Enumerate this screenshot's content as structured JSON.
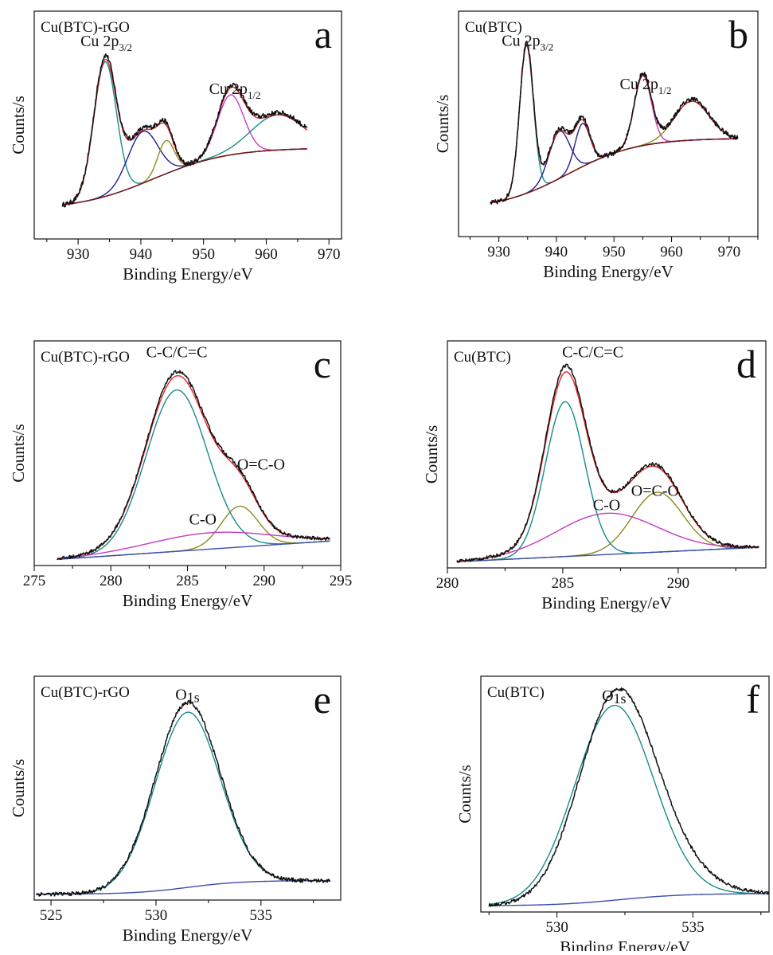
{
  "colors": {
    "raw": "#111111",
    "envelope": "#e8262b",
    "main_peak": "#188a8a",
    "satellite_1": "#1f1f8c",
    "satellite_2": "#8b8b1e",
    "broad_peak": "#c23cc2",
    "background": "#7a1414",
    "baseline": "#3b4fb0"
  },
  "chart_data": [
    {
      "type": "line",
      "panel_letter": "a",
      "sample": "Cu(BTC)-rGO",
      "xlabel": "Binding Energy/eV",
      "ylabel": "Counts/s",
      "xlim": [
        923,
        972
      ],
      "ylim": [
        0,
        1.1
      ],
      "xticks": [
        930,
        940,
        950,
        960,
        970
      ],
      "peak_labels": [
        {
          "main": "Cu 2p",
          "sub": "3/2",
          "x": 934.5,
          "y": 0.93
        },
        {
          "main": "Cu 2p",
          "sub": "1/2",
          "x": 955,
          "y": 0.7
        }
      ],
      "x_range": [
        927.5,
        966.5
      ],
      "noise": 0.012,
      "noise_on": [
        "raw"
      ],
      "series": [
        {
          "role": "raw",
          "baseline": {
            "type": "shirley",
            "y0": 0.14,
            "y1": 0.44,
            "c": 942,
            "w": 6
          },
          "peaks": [
            [
              934.3,
              0.67,
              1.8
            ],
            [
              940.3,
              0.26,
              2.4
            ],
            [
              944.0,
              0.17,
              1.3
            ],
            [
              954.3,
              0.3,
              2.1
            ],
            [
              961.8,
              0.18,
              4.2
            ]
          ],
          "role_color": "raw"
        },
        {
          "role": "envelope",
          "baseline": {
            "type": "shirley",
            "y0": 0.14,
            "y1": 0.44,
            "c": 942,
            "w": 6
          },
          "peaks": [
            [
              934.3,
              0.65,
              1.8
            ],
            [
              940.3,
              0.25,
              2.4
            ],
            [
              944.0,
              0.16,
              1.3
            ],
            [
              954.3,
              0.29,
              2.1
            ],
            [
              961.8,
              0.17,
              4.2
            ]
          ],
          "role_color": "envelope"
        },
        {
          "role": "component",
          "baseline": {
            "type": "shirley",
            "y0": 0.14,
            "y1": 0.44,
            "c": 942,
            "w": 6
          },
          "peaks": [
            [
              934.3,
              0.65,
              1.8
            ]
          ],
          "role_color": "main_peak"
        },
        {
          "role": "component",
          "baseline": {
            "type": "shirley",
            "y0": 0.14,
            "y1": 0.44,
            "c": 942,
            "w": 6
          },
          "peaks": [
            [
              940.3,
              0.25,
              2.4
            ]
          ],
          "role_color": "satellite_1"
        },
        {
          "role": "component",
          "baseline": {
            "type": "shirley",
            "y0": 0.14,
            "y1": 0.44,
            "c": 942,
            "w": 6
          },
          "peaks": [
            [
              944.0,
              0.16,
              1.3
            ]
          ],
          "role_color": "satellite_2"
        },
        {
          "role": "component",
          "baseline": {
            "type": "shirley",
            "y0": 0.14,
            "y1": 0.44,
            "c": 942,
            "w": 6
          },
          "peaks": [
            [
              954.3,
              0.29,
              2.1
            ]
          ],
          "role_color": "broad_peak"
        },
        {
          "role": "component",
          "baseline": {
            "type": "shirley",
            "y0": 0.14,
            "y1": 0.44,
            "c": 942,
            "w": 6
          },
          "peaks": [
            [
              961.8,
              0.17,
              4.2
            ]
          ],
          "role_color": "main_peak"
        },
        {
          "role": "background",
          "baseline": {
            "type": "shirley",
            "y0": 0.14,
            "y1": 0.44,
            "c": 942,
            "w": 6
          },
          "peaks": [],
          "role_color": "background"
        }
      ]
    },
    {
      "type": "line",
      "panel_letter": "b",
      "sample": "Cu(BTC)",
      "xlabel": "Binding Energy/eV",
      "ylabel": "Counts/s",
      "xlim": [
        923,
        975
      ],
      "ylim": [
        0,
        1.1
      ],
      "xticks": [
        930,
        940,
        950,
        960,
        970
      ],
      "peak_labels": [
        {
          "main": "Cu 2p",
          "sub": "3/2",
          "x": 935,
          "y": 0.93
        },
        {
          "main": "Cu 2p",
          "sub": "1/2",
          "x": 955.5,
          "y": 0.72
        }
      ],
      "x_range": [
        928.5,
        971.5
      ],
      "noise": 0.012,
      "noise_on": [
        "raw"
      ],
      "series": [
        {
          "role": "raw",
          "baseline": {
            "type": "shirley",
            "y0": 0.13,
            "y1": 0.48,
            "c": 942,
            "w": 6
          },
          "peaks": [
            [
              934.8,
              0.73,
              1.2
            ],
            [
              940.5,
              0.24,
              1.8
            ],
            [
              944.5,
              0.22,
              1.3
            ],
            [
              955.0,
              0.35,
              1.5
            ],
            [
              963.5,
              0.2,
              3.0
            ]
          ],
          "role_color": "raw"
        },
        {
          "role": "envelope",
          "baseline": {
            "type": "shirley",
            "y0": 0.13,
            "y1": 0.48,
            "c": 942,
            "w": 6
          },
          "peaks": [
            [
              934.8,
              0.72,
              1.2
            ],
            [
              940.5,
              0.23,
              1.8
            ],
            [
              944.5,
              0.21,
              1.3
            ],
            [
              955.0,
              0.34,
              1.5
            ],
            [
              963.5,
              0.19,
              3.0
            ]
          ],
          "role_color": "envelope"
        },
        {
          "role": "component",
          "baseline": {
            "type": "shirley",
            "y0": 0.13,
            "y1": 0.48,
            "c": 942,
            "w": 6
          },
          "peaks": [
            [
              934.8,
              0.72,
              1.2
            ]
          ],
          "role_color": "main_peak"
        },
        {
          "role": "component",
          "baseline": {
            "type": "shirley",
            "y0": 0.13,
            "y1": 0.48,
            "c": 942,
            "w": 6
          },
          "peaks": [
            [
              940.5,
              0.23,
              1.8
            ]
          ],
          "role_color": "satellite_1"
        },
        {
          "role": "component",
          "baseline": {
            "type": "shirley",
            "y0": 0.13,
            "y1": 0.48,
            "c": 942,
            "w": 6
          },
          "peaks": [
            [
              944.5,
              0.21,
              1.3
            ]
          ],
          "role_color": "satellite_1"
        },
        {
          "role": "component",
          "baseline": {
            "type": "shirley",
            "y0": 0.13,
            "y1": 0.48,
            "c": 942,
            "w": 6
          },
          "peaks": [
            [
              955.0,
              0.34,
              1.5
            ]
          ],
          "role_color": "broad_peak"
        },
        {
          "role": "component",
          "baseline": {
            "type": "shirley",
            "y0": 0.13,
            "y1": 0.48,
            "c": 942,
            "w": 6
          },
          "peaks": [
            [
              963.5,
              0.19,
              3.0
            ]
          ],
          "role_color": "satellite_2"
        },
        {
          "role": "background",
          "baseline": {
            "type": "shirley",
            "y0": 0.13,
            "y1": 0.48,
            "c": 942,
            "w": 6
          },
          "peaks": [],
          "role_color": "background"
        }
      ]
    },
    {
      "type": "line",
      "panel_letter": "c",
      "sample": "Cu(BTC)-rGO",
      "xlabel": "Binding Energy/eV",
      "ylabel": "Counts/s",
      "xlim": [
        275,
        295
      ],
      "ylim": [
        0,
        1.1
      ],
      "xticks": [
        275,
        280,
        285,
        290,
        295
      ],
      "peak_labels": [
        {
          "main": "C-C/C=C",
          "x": 284.3,
          "y": 1.02
        },
        {
          "main": "O=C-O",
          "x": 289.8,
          "y": 0.47
        },
        {
          "main": "C-O",
          "x": 286.0,
          "y": 0.2
        }
      ],
      "x_range": [
        276.5,
        294.3
      ],
      "noise": 0.008,
      "noise_on": [
        "raw"
      ],
      "series": [
        {
          "role": "raw",
          "baseline": {
            "type": "linear",
            "y0": 0.03,
            "y1": 0.12
          },
          "peaks": [
            [
              284.3,
              0.81,
              2.0
            ],
            [
              288.4,
              0.21,
              1.2
            ],
            [
              286.5,
              0.08,
              4.0
            ]
          ],
          "role_color": "raw"
        },
        {
          "role": "envelope",
          "baseline": {
            "type": "linear",
            "y0": 0.03,
            "y1": 0.12
          },
          "peaks": [
            [
              284.3,
              0.79,
              2.0
            ],
            [
              288.4,
              0.2,
              1.2
            ],
            [
              286.5,
              0.08,
              4.0
            ]
          ],
          "role_color": "envelope"
        },
        {
          "role": "component",
          "baseline": {
            "type": "linear",
            "y0": 0.03,
            "y1": 0.12
          },
          "peaks": [
            [
              284.3,
              0.79,
              2.0
            ]
          ],
          "role_color": "main_peak"
        },
        {
          "role": "component",
          "baseline": {
            "type": "linear",
            "y0": 0.03,
            "y1": 0.12
          },
          "peaks": [
            [
              288.4,
              0.2,
              1.2
            ]
          ],
          "role_color": "satellite_2"
        },
        {
          "role": "component",
          "baseline": {
            "type": "linear",
            "y0": 0.03,
            "y1": 0.12
          },
          "peaks": [
            [
              286.5,
              0.08,
              4.0
            ]
          ],
          "role_color": "broad_peak"
        },
        {
          "role": "background",
          "baseline": {
            "type": "linear",
            "y0": 0.03,
            "y1": 0.12
          },
          "peaks": [],
          "role_color": "baseline"
        }
      ]
    },
    {
      "type": "line",
      "panel_letter": "d",
      "sample": "Cu(BTC)",
      "xlabel": "Binding Energy/eV",
      "ylabel": "Counts/s",
      "xlim": [
        280,
        293.8
      ],
      "ylim": [
        0,
        1.1
      ],
      "xticks": [
        280,
        285,
        290
      ],
      "peak_labels": [
        {
          "main": "C-C/C=C",
          "x": 286.3,
          "y": 1.02
        },
        {
          "main": "O=C-O",
          "x": 289.0,
          "y": 0.35
        },
        {
          "main": "C-O",
          "x": 286.9,
          "y": 0.28
        }
      ],
      "x_range": [
        280.4,
        293.5
      ],
      "noise": 0.008,
      "noise_on": [
        "raw"
      ],
      "series": [
        {
          "role": "raw",
          "baseline": {
            "type": "linear",
            "y0": 0.03,
            "y1": 0.1
          },
          "peaks": [
            [
              285.1,
              0.78,
              0.85
            ],
            [
              289.1,
              0.3,
              1.1
            ],
            [
              286.9,
              0.2,
              2.2
            ]
          ],
          "role_color": "raw"
        },
        {
          "role": "envelope",
          "baseline": {
            "type": "linear",
            "y0": 0.03,
            "y1": 0.1
          },
          "peaks": [
            [
              285.1,
              0.75,
              0.85
            ],
            [
              289.1,
              0.29,
              1.1
            ],
            [
              286.9,
              0.2,
              2.2
            ]
          ],
          "role_color": "envelope"
        },
        {
          "role": "component",
          "baseline": {
            "type": "linear",
            "y0": 0.03,
            "y1": 0.1
          },
          "peaks": [
            [
              285.1,
              0.75,
              0.85
            ]
          ],
          "role_color": "main_peak"
        },
        {
          "role": "component",
          "baseline": {
            "type": "linear",
            "y0": 0.03,
            "y1": 0.1
          },
          "peaks": [
            [
              289.1,
              0.29,
              1.1
            ]
          ],
          "role_color": "satellite_2"
        },
        {
          "role": "component",
          "baseline": {
            "type": "linear",
            "y0": 0.03,
            "y1": 0.1
          },
          "peaks": [
            [
              286.9,
              0.2,
              2.2
            ]
          ],
          "role_color": "broad_peak"
        },
        {
          "role": "background",
          "baseline": {
            "type": "linear",
            "y0": 0.03,
            "y1": 0.1
          },
          "peaks": [],
          "role_color": "baseline"
        }
      ]
    },
    {
      "type": "line",
      "panel_letter": "e",
      "sample": "Cu(BTC)-rGO",
      "xlabel": "Binding Energy/eV",
      "ylabel": "Counts/s",
      "xlim": [
        524.2,
        538.8
      ],
      "ylim": [
        0,
        1.15
      ],
      "xticks": [
        525,
        530,
        535
      ],
      "peak_labels": [
        {
          "main": "O",
          "sub": "1s",
          "sub_style": "low",
          "x": 531.5,
          "y": 1.03
        }
      ],
      "x_range": [
        524.3,
        538.3
      ],
      "noise": 0.01,
      "noise_on": [
        "raw"
      ],
      "series": [
        {
          "role": "raw",
          "baseline": {
            "type": "sigmoid",
            "y0": 0.03,
            "y1": 0.1,
            "c": 531.5,
            "w": 1.3
          },
          "peaks": [
            [
              531.5,
              0.95,
              1.55
            ]
          ],
          "role_color": "raw"
        },
        {
          "role": "component",
          "baseline": {
            "type": "sigmoid",
            "y0": 0.03,
            "y1": 0.1,
            "c": 531.5,
            "w": 1.3
          },
          "peaks": [
            [
              531.5,
              0.9,
              1.55
            ]
          ],
          "role_color": "main_peak"
        },
        {
          "role": "background",
          "baseline": {
            "type": "sigmoid",
            "y0": 0.03,
            "y1": 0.1,
            "c": 531.5,
            "w": 1.3
          },
          "peaks": [],
          "role_color": "baseline"
        }
      ]
    },
    {
      "type": "line",
      "panel_letter": "f",
      "sample": "Cu(BTC)",
      "xlabel": "Binding Energy/eV",
      "ylabel": "Counts/s",
      "xlim": [
        527.2,
        537.8
      ],
      "ylim": [
        0,
        1.15
      ],
      "xticks": [
        530,
        535
      ],
      "peak_labels": [
        {
          "main": "O",
          "sub": "1s",
          "sub_style": "low",
          "x": 532.1,
          "y": 1.03
        }
      ],
      "x_range": [
        527.5,
        537.8
      ],
      "noise": 0.008,
      "noise_on": [
        "raw"
      ],
      "series": [
        {
          "role": "raw",
          "baseline": {
            "type": "sigmoid",
            "y0": 0.03,
            "y1": 0.09,
            "c": 532.3,
            "w": 1.2
          },
          "peaks": [
            [
              532.1,
              0.9,
              1.35
            ],
            [
              533.6,
              0.2,
              1.5
            ]
          ],
          "role_color": "raw"
        },
        {
          "role": "component",
          "baseline": {
            "type": "sigmoid",
            "y0": 0.03,
            "y1": 0.09,
            "c": 532.3,
            "w": 1.2
          },
          "peaks": [
            [
              532.1,
              0.95,
              1.45
            ]
          ],
          "role_color": "main_peak"
        },
        {
          "role": "background",
          "baseline": {
            "type": "sigmoid",
            "y0": 0.03,
            "y1": 0.09,
            "c": 532.3,
            "w": 1.2
          },
          "peaks": [],
          "role_color": "baseline"
        }
      ]
    }
  ]
}
